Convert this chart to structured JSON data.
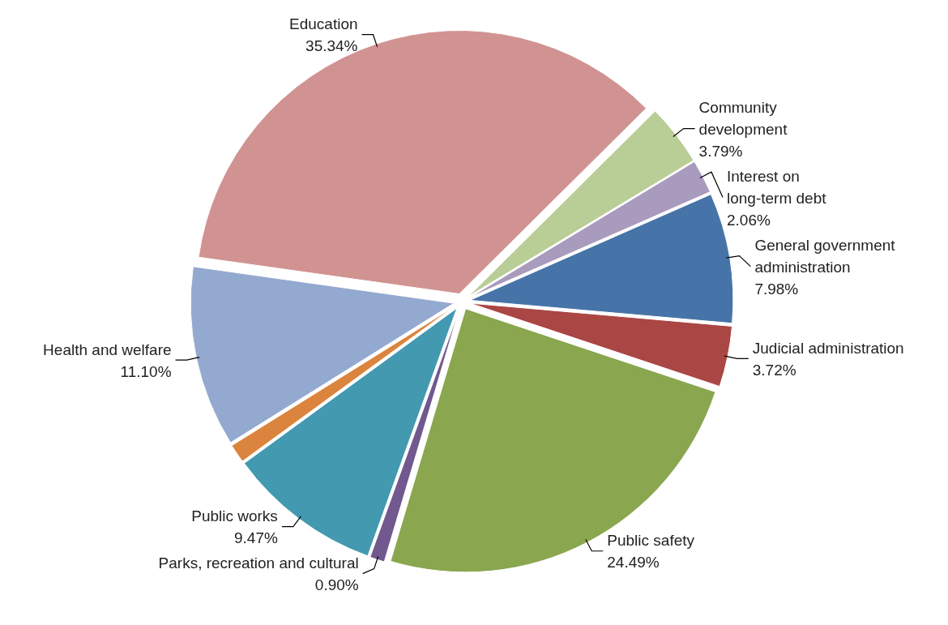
{
  "chart_data": {
    "type": "pie",
    "categories": [
      "Education",
      "Community development",
      "Interest on long-term debt",
      "General government administration",
      "Judicial administration",
      "Public safety",
      "Parks, recreation and cultural",
      "Public works",
      null,
      "Health and welfare"
    ],
    "values": [
      35.34,
      3.79,
      2.06,
      7.98,
      3.72,
      24.49,
      0.9,
      9.47,
      1.15,
      11.1
    ],
    "value_labels": [
      "35.34%",
      "3.79%",
      "2.06%",
      "7.98%",
      "3.72%",
      "24.49%",
      "0.90%",
      "9.47%",
      null,
      "11.10%"
    ],
    "colors": [
      "#d19392",
      "#b9cd96",
      "#a99bbd",
      "#4674a8",
      "#aa4644",
      "#8aa64f",
      "#71588f",
      "#4299b0",
      "#db843d",
      "#94a9cf"
    ]
  }
}
